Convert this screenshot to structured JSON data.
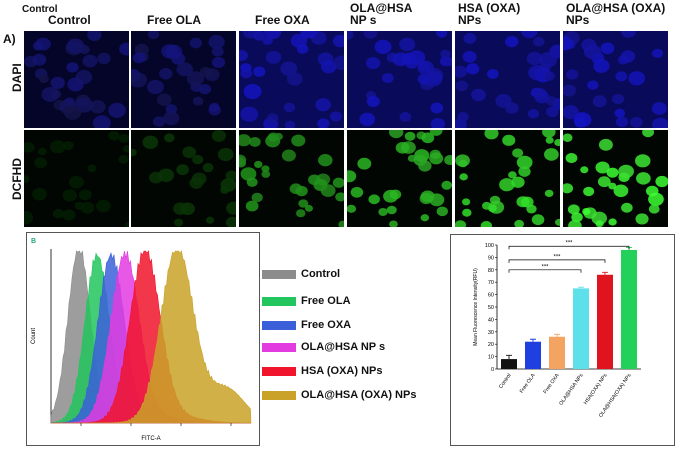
{
  "panel_a": {
    "corner_label": "Control",
    "label": "A)",
    "columns": [
      "Control",
      "Free OLA",
      "Free OXA",
      "OLA@HSA NP s",
      "HSA (OXA) NPs",
      "OLA@HSA (OXA) NPs"
    ],
    "column_lines": [
      [
        "Control"
      ],
      [
        "Free OLA"
      ],
      [
        "Free OXA"
      ],
      [
        "OLA@HSA",
        "NP s"
      ],
      [
        "HSA (OXA)",
        "NPs"
      ],
      [
        "OLA@HSA (OXA)",
        "NPs"
      ]
    ],
    "rows": [
      "DAPI",
      "DCFHD"
    ],
    "dcfhd_intensity": [
      0.05,
      0.15,
      0.55,
      0.7,
      0.85,
      1.0
    ]
  },
  "panel_b": {
    "corner_label": "B",
    "xlabel": "FITC-A",
    "ylabel": "Count",
    "legend": [
      {
        "label": "Control",
        "color": "#8c8c8c"
      },
      {
        "label": "Free OLA",
        "color": "#22c55e"
      },
      {
        "label": "Free OXA",
        "color": "#3b5fd9"
      },
      {
        "label": "OLA@HSA NP s",
        "color": "#e23be0"
      },
      {
        "label": "HSA (OXA) NPs",
        "color": "#f0142c"
      },
      {
        "label": "OLA@HSA (OXA) NPs",
        "color": "#c9a227"
      }
    ]
  },
  "chart_data": {
    "type": "bar",
    "ylabel": "Mean Fluorescence Intensity(RFU)",
    "ylim": [
      0,
      100
    ],
    "yticks": [
      0,
      10,
      20,
      30,
      40,
      50,
      60,
      70,
      80,
      90,
      100
    ],
    "categories": [
      "Control",
      "Free OLA",
      "Free OXA",
      "OLA@HSA NPs",
      "HSA(OXA) NPs",
      "OLA@HSA(OXA) NPs"
    ],
    "values": [
      8,
      22,
      26,
      65,
      76,
      96
    ],
    "errors": [
      3,
      2,
      2,
      1,
      2,
      2
    ],
    "colors": [
      "#111111",
      "#1f3fe0",
      "#f4a460",
      "#5ee0ea",
      "#e0141e",
      "#22d05a"
    ],
    "significance": [
      {
        "from": "Control",
        "to": "OLA@HSA NPs",
        "label": "***"
      },
      {
        "from": "Control",
        "to": "HSA(OXA) NPs",
        "label": "***"
      },
      {
        "from": "Control",
        "to": "OLA@HSA(OXA) NPs",
        "label": "***"
      }
    ]
  }
}
